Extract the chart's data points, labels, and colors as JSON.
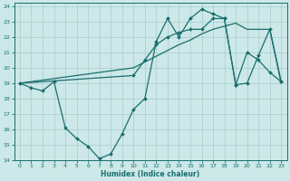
{
  "xlabel": "Humidex (Indice chaleur)",
  "xlim": [
    -0.5,
    23.5
  ],
  "ylim": [
    14,
    24.2
  ],
  "yticks": [
    14,
    15,
    16,
    17,
    18,
    19,
    20,
    21,
    22,
    23,
    24
  ],
  "xticks": [
    0,
    1,
    2,
    3,
    4,
    5,
    6,
    7,
    8,
    9,
    10,
    11,
    12,
    13,
    14,
    15,
    16,
    17,
    18,
    19,
    20,
    21,
    22,
    23
  ],
  "bg_color": "#cce8e8",
  "grid_color": "#aacccc",
  "line_color": "#1a6e6e",
  "line1_x": [
    0,
    5,
    10,
    14,
    15,
    16,
    17,
    18,
    19,
    20,
    21,
    22,
    23
  ],
  "line1_y": [
    19.0,
    19.5,
    20.0,
    21.5,
    21.8,
    22.2,
    22.5,
    22.7,
    22.9,
    22.5,
    22.5,
    22.5,
    19.0
  ],
  "line2_x": [
    0,
    1,
    2,
    3,
    4,
    5,
    6,
    7,
    8,
    9,
    10,
    11,
    12,
    13,
    14,
    15,
    16,
    17,
    18,
    19,
    20,
    21,
    22,
    23
  ],
  "line2_y": [
    19.0,
    18.7,
    18.5,
    19.1,
    16.1,
    15.4,
    14.9,
    14.1,
    14.4,
    15.7,
    17.3,
    18.0,
    21.7,
    23.2,
    22.0,
    23.2,
    23.8,
    23.5,
    23.2,
    18.9,
    21.0,
    20.5,
    19.7,
    19.1
  ],
  "line3_x": [
    0,
    10,
    11,
    12,
    13,
    14,
    15,
    16,
    17,
    18,
    19,
    20,
    21,
    22,
    23
  ],
  "line3_y": [
    19.0,
    19.5,
    20.5,
    21.5,
    22.0,
    22.3,
    22.5,
    22.5,
    23.2,
    23.2,
    18.9,
    19.0,
    20.8,
    22.5,
    19.1
  ]
}
